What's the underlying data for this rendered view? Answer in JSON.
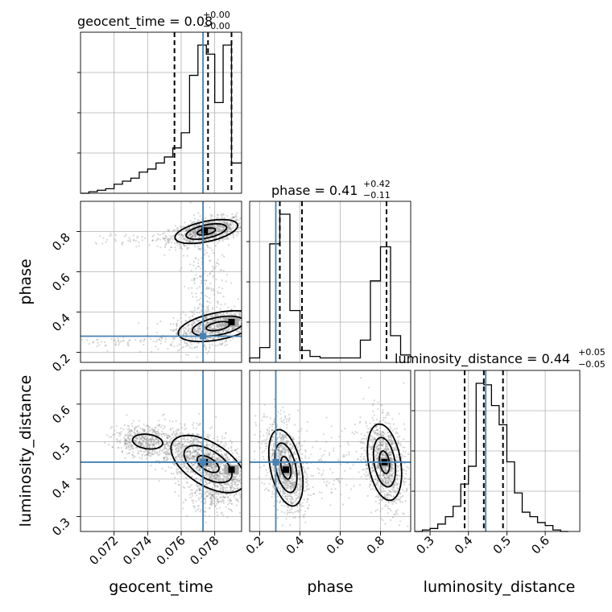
{
  "chart_data": {
    "type": "corner",
    "parameters": [
      "geocent_time",
      "phase",
      "luminosity_distance"
    ],
    "axis_labels": {
      "geocent_time": "geocent_time",
      "phase": "phase",
      "luminosity_distance": "luminosity_distance"
    },
    "titles": [
      {
        "param": "geocent_time",
        "text": "geocent_time = 0.08",
        "upper": "+0.00",
        "lower": "−0.00"
      },
      {
        "param": "phase",
        "text": "phase = 0.41",
        "upper": "+0.42",
        "lower": "−0.11"
      },
      {
        "param": "luminosity_distance",
        "text": "luminosity_distance = 0.44",
        "upper": "+0.05",
        "lower": "−0.05"
      }
    ],
    "ranges": {
      "geocent_time": [
        0.07,
        0.0796
      ],
      "phase": [
        0.15,
        0.95
      ],
      "luminosity_distance": [
        0.26,
        0.69
      ]
    },
    "ticks": {
      "geocent_time": {
        "values": [
          0.072,
          0.074,
          0.076,
          0.078
        ],
        "labels": [
          "0.072",
          "0.074",
          "0.076",
          "0.078"
        ]
      },
      "phase": {
        "values": [
          0.2,
          0.4,
          0.6,
          0.8
        ],
        "labels": [
          "0.2",
          "0.4",
          "0.6",
          "0.8"
        ]
      },
      "luminosity_distance": {
        "values": [
          0.3,
          0.4,
          0.5,
          0.6
        ],
        "labels": [
          "0.3",
          "0.4",
          "0.5",
          "0.6"
        ]
      }
    },
    "truths": {
      "geocent_time": 0.0773,
      "phase": 0.28,
      "luminosity_distance": 0.445
    },
    "quantiles": {
      "geocent_time": [
        0.0756,
        0.0776,
        0.079
      ],
      "phase": [
        0.3,
        0.41,
        0.83
      ],
      "luminosity_distance": [
        0.39,
        0.44,
        0.49
      ]
    },
    "histograms": {
      "geocent_time": {
        "edges": [
          0.07,
          0.0705,
          0.071,
          0.0715,
          0.072,
          0.0725,
          0.073,
          0.0735,
          0.074,
          0.0745,
          0.075,
          0.0755,
          0.076,
          0.0765,
          0.077,
          0.0775,
          0.078,
          0.0785,
          0.079,
          0.0796
        ],
        "counts": [
          0,
          1,
          2,
          3,
          6,
          8,
          10,
          14,
          16,
          20,
          24,
          30,
          40,
          78,
          98,
          92,
          60,
          98,
          20
        ]
      },
      "phase": {
        "edges": [
          0.15,
          0.2,
          0.25,
          0.3,
          0.35,
          0.4,
          0.45,
          0.5,
          0.55,
          0.6,
          0.65,
          0.7,
          0.75,
          0.8,
          0.85,
          0.9,
          0.95
        ],
        "counts": [
          3,
          10,
          80,
          100,
          35,
          8,
          4,
          3,
          3,
          3,
          3,
          15,
          55,
          78,
          18,
          5
        ]
      },
      "luminosity_distance": {
        "edges": [
          0.26,
          0.28,
          0.3,
          0.32,
          0.34,
          0.36,
          0.38,
          0.4,
          0.42,
          0.44,
          0.46,
          0.48,
          0.5,
          0.52,
          0.54,
          0.56,
          0.58,
          0.6,
          0.62,
          0.64,
          0.66
        ],
        "counts": [
          0,
          1,
          2,
          5,
          10,
          17,
          32,
          44,
          100,
          99,
          85,
          72,
          47,
          26,
          13,
          10,
          6,
          4,
          1,
          0
        ]
      }
    },
    "modes_2d": {
      "phase_vs_geocent_time": [
        [
          0.0774,
          0.805
        ],
        [
          0.079,
          0.35
        ]
      ],
      "luminosity_distance_vs_geocent_time": [
        [
          0.079,
          0.425
        ],
        [
          0.0774,
          0.445
        ]
      ],
      "luminosity_distance_vs_phase": [
        [
          0.33,
          0.425
        ],
        [
          0.82,
          0.445
        ]
      ]
    }
  }
}
